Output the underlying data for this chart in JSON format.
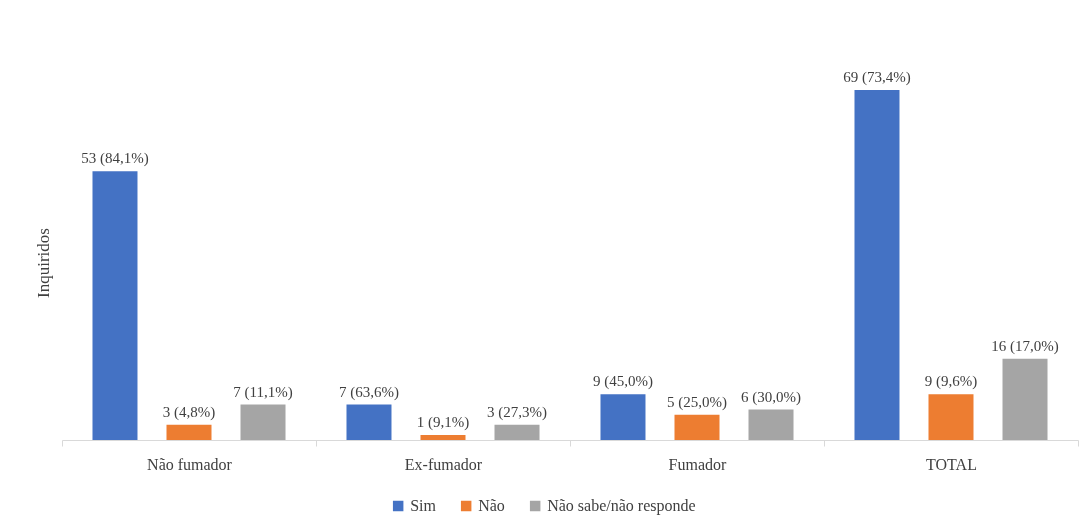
{
  "chart_data": {
    "type": "bar",
    "ylabel": "Inquiridos",
    "categories": [
      "Não fumador",
      "Ex-fumador",
      "Fumador",
      "TOTAL"
    ],
    "series": [
      {
        "name": "Sim",
        "color": "#4472c4",
        "values": [
          53,
          7,
          9,
          69
        ],
        "value_labels": [
          "53 (84,1%)",
          "7 (63,6%)",
          "9 (45,0%)",
          "69 (73,4%)"
        ]
      },
      {
        "name": "Não",
        "color": "#ed7d31",
        "values": [
          3,
          1,
          5,
          9
        ],
        "value_labels": [
          "3 (4,8%)",
          "1 (9,1%)",
          "5 (25,0%)",
          "9 (9,6%)"
        ]
      },
      {
        "name": "Não sabe/não responde",
        "color": "#a5a5a5",
        "values": [
          7,
          3,
          6,
          16
        ],
        "value_labels": [
          "7 (11,1%)",
          "3 (27,3%)",
          "6 (30,0%)",
          "16 (17,0%)"
        ]
      }
    ],
    "legend": "bottom",
    "tick_labels": "x"
  }
}
